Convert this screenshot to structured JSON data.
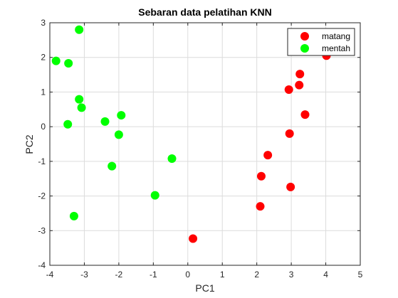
{
  "chart_data": {
    "type": "scatter",
    "title": "Sebaran data pelatihan KNN",
    "xlabel": "PC1",
    "ylabel": "PC2",
    "xlim": [
      -4,
      5
    ],
    "ylim": [
      -4,
      3
    ],
    "xticks": [
      -4,
      -3,
      -2,
      -1,
      0,
      1,
      2,
      3,
      4,
      5
    ],
    "yticks": [
      -4,
      -3,
      -2,
      -1,
      0,
      1,
      2,
      3
    ],
    "grid": true,
    "legend_position": "top-right",
    "series": [
      {
        "name": "matang",
        "color": "#ff0000",
        "points": [
          [
            4.02,
            2.05
          ],
          [
            3.25,
            1.52
          ],
          [
            3.23,
            1.2
          ],
          [
            2.93,
            1.07
          ],
          [
            3.4,
            0.35
          ],
          [
            2.95,
            -0.2
          ],
          [
            2.32,
            -0.82
          ],
          [
            2.13,
            -1.43
          ],
          [
            2.98,
            -1.74
          ],
          [
            2.1,
            -2.3
          ],
          [
            0.15,
            -3.23
          ]
        ]
      },
      {
        "name": "mentah",
        "color": "#00ff00",
        "points": [
          [
            -3.15,
            2.8
          ],
          [
            -3.82,
            1.9
          ],
          [
            -3.46,
            1.83
          ],
          [
            -3.15,
            0.79
          ],
          [
            -3.08,
            0.55
          ],
          [
            -3.48,
            0.07
          ],
          [
            -2.4,
            0.15
          ],
          [
            -1.93,
            0.33
          ],
          [
            -2.0,
            -0.23
          ],
          [
            -0.46,
            -0.92
          ],
          [
            -2.2,
            -1.14
          ],
          [
            -0.95,
            -1.98
          ],
          [
            -3.3,
            -2.58
          ]
        ]
      }
    ]
  }
}
